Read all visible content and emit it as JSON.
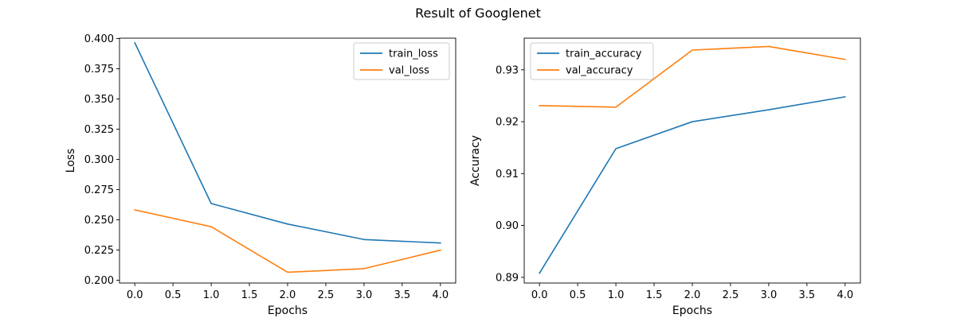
{
  "figure": {
    "suptitle": "Result of Googlenet"
  },
  "chart_data": [
    {
      "type": "line",
      "title": "",
      "xlabel": "Epochs",
      "ylabel": "Loss",
      "xlim": [
        -0.2,
        4.2
      ],
      "ylim": [
        0.1977,
        0.4003
      ],
      "xticks": [
        0.0,
        0.5,
        1.0,
        1.5,
        2.0,
        2.5,
        3.0,
        3.5,
        4.0
      ],
      "xtick_labels": [
        "0.0",
        "0.5",
        "1.0",
        "1.5",
        "2.0",
        "2.5",
        "3.0",
        "3.5",
        "4.0"
      ],
      "yticks": [
        0.2,
        0.225,
        0.25,
        0.275,
        0.3,
        0.325,
        0.35,
        0.375,
        0.4
      ],
      "ytick_labels": [
        "0.200",
        "0.225",
        "0.250",
        "0.275",
        "0.300",
        "0.325",
        "0.350",
        "0.375",
        "0.400"
      ],
      "grid": false,
      "legend_position": "top-right",
      "x": [
        0,
        1,
        2,
        3,
        4
      ],
      "series": [
        {
          "name": "train_loss",
          "color": "#1f77b4",
          "values": [
            0.3965,
            0.2635,
            0.2465,
            0.2337,
            0.2308
          ]
        },
        {
          "name": "val_loss",
          "color": "#ff7f0e",
          "values": [
            0.2582,
            0.2443,
            0.2066,
            0.2096,
            0.2249
          ]
        }
      ]
    },
    {
      "type": "line",
      "title": "",
      "xlabel": "Epochs",
      "ylabel": "Accuracy",
      "xlim": [
        -0.2,
        4.2
      ],
      "ylim": [
        0.8889,
        0.9361
      ],
      "xticks": [
        0.0,
        0.5,
        1.0,
        1.5,
        2.0,
        2.5,
        3.0,
        3.5,
        4.0
      ],
      "xtick_labels": [
        "0.0",
        "0.5",
        "1.0",
        "1.5",
        "2.0",
        "2.5",
        "3.0",
        "3.5",
        "4.0"
      ],
      "yticks": [
        0.89,
        0.9,
        0.91,
        0.92,
        0.93
      ],
      "ytick_labels": [
        "0.89",
        "0.90",
        "0.91",
        "0.92",
        "0.93"
      ],
      "grid": false,
      "legend_position": "top-left",
      "x": [
        0,
        1,
        2,
        3,
        4
      ],
      "series": [
        {
          "name": "train_accuracy",
          "color": "#1f77b4",
          "values": [
            0.8908,
            0.9148,
            0.92,
            0.9223,
            0.9248
          ]
        },
        {
          "name": "val_accuracy",
          "color": "#ff7f0e",
          "values": [
            0.9231,
            0.9228,
            0.9338,
            0.9345,
            0.932
          ]
        }
      ]
    }
  ]
}
